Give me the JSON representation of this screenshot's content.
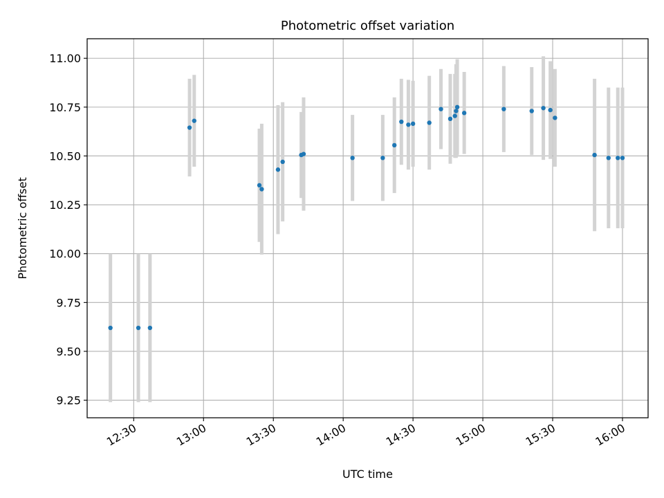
{
  "chart_data": {
    "type": "scatter",
    "title": "Photometric offset variation",
    "xlabel": "UTC time",
    "ylabel": "Photometric offset",
    "x_is_time": true,
    "xlim": [
      "12:10",
      "16:11"
    ],
    "ylim": [
      9.16,
      11.1
    ],
    "x_ticks": [
      "12:30",
      "13:00",
      "13:30",
      "14:00",
      "14:30",
      "15:00",
      "15:30",
      "16:00"
    ],
    "y_ticks": [
      "9.25",
      "9.50",
      "9.75",
      "10.00",
      "10.25",
      "10.50",
      "10.75",
      "11.00"
    ],
    "grid": true,
    "point_color": "#1f77b4",
    "errorbar_color": "#d3d3d3",
    "points": [
      {
        "x": "12:20",
        "y": 9.62,
        "err": 0.38
      },
      {
        "x": "12:32",
        "y": 9.62,
        "err": 0.38
      },
      {
        "x": "12:37",
        "y": 9.62,
        "err": 0.38
      },
      {
        "x": "12:54",
        "y": 10.645,
        "err": 0.25
      },
      {
        "x": "12:56",
        "y": 10.68,
        "err": 0.235
      },
      {
        "x": "13:24",
        "y": 10.35,
        "err": 0.29
      },
      {
        "x": "13:25",
        "y": 10.33,
        "err": 0.335
      },
      {
        "x": "13:32",
        "y": 10.43,
        "err": 0.33
      },
      {
        "x": "13:34",
        "y": 10.47,
        "err": 0.305
      },
      {
        "x": "13:42",
        "y": 10.505,
        "err": 0.22
      },
      {
        "x": "13:43",
        "y": 10.51,
        "err": 0.29
      },
      {
        "x": "14:04",
        "y": 10.49,
        "err": 0.22
      },
      {
        "x": "14:17",
        "y": 10.49,
        "err": 0.22
      },
      {
        "x": "14:22",
        "y": 10.555,
        "err": 0.245
      },
      {
        "x": "14:25",
        "y": 10.675,
        "err": 0.22
      },
      {
        "x": "14:28",
        "y": 10.66,
        "err": 0.23
      },
      {
        "x": "14:30",
        "y": 10.665,
        "err": 0.22
      },
      {
        "x": "14:37",
        "y": 10.67,
        "err": 0.24
      },
      {
        "x": "14:42",
        "y": 10.74,
        "err": 0.205
      },
      {
        "x": "14:46",
        "y": 10.69,
        "err": 0.23
      },
      {
        "x": "14:48",
        "y": 10.705,
        "err": 0.215
      },
      {
        "x": "14:48.5",
        "y": 10.73,
        "err": 0.24
      },
      {
        "x": "14:49",
        "y": 10.75,
        "err": 0.245
      },
      {
        "x": "14:52",
        "y": 10.72,
        "err": 0.21
      },
      {
        "x": "15:09",
        "y": 10.74,
        "err": 0.22
      },
      {
        "x": "15:21",
        "y": 10.73,
        "err": 0.225
      },
      {
        "x": "15:26",
        "y": 10.745,
        "err": 0.265
      },
      {
        "x": "15:29",
        "y": 10.735,
        "err": 0.25
      },
      {
        "x": "15:31",
        "y": 10.695,
        "err": 0.25
      },
      {
        "x": "15:48",
        "y": 10.505,
        "err": 0.39
      },
      {
        "x": "15:54",
        "y": 10.49,
        "err": 0.36
      },
      {
        "x": "15:58",
        "y": 10.49,
        "err": 0.36
      },
      {
        "x": "16:00",
        "y": 10.49,
        "err": 0.36
      }
    ]
  }
}
